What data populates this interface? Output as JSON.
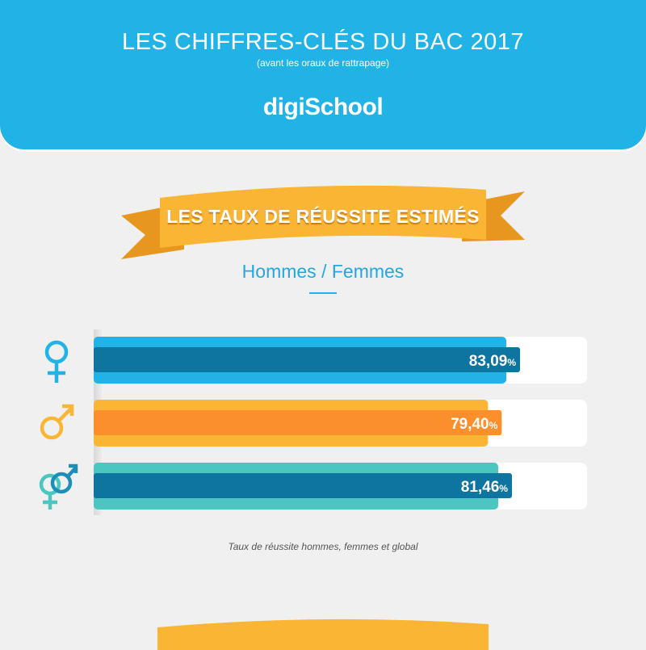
{
  "header": {
    "title": "LES CHIFFRES-CLÉS DU BAC 2017",
    "subtitle": "(avant les oraux de rattrapage)",
    "logo": "digiSchool"
  },
  "section": {
    "banner": "LES TAUX DE RÉUSSITE ESTIMÉS",
    "subheading": "Hommes / Femmes"
  },
  "colors": {
    "female": "#22b3e6",
    "female_inner": "#0e74a0",
    "male": "#fbb534",
    "male_inner": "#fb8f2c",
    "global": "#4cc6c0",
    "global_inner": "#0e74a0",
    "ribbon": "#fbb534"
  },
  "chart_data": {
    "type": "bar",
    "orientation": "horizontal",
    "categories": [
      "female-symbol",
      "male-symbol",
      "mixed-symbol"
    ],
    "values": [
      83.09,
      79.4,
      81.46
    ],
    "value_labels": [
      "83,09",
      "79,40",
      "81,46"
    ],
    "unit": "%",
    "xlim": [
      0,
      100
    ],
    "title": "",
    "caption": "Taux de réussite hommes, femmes et global"
  }
}
